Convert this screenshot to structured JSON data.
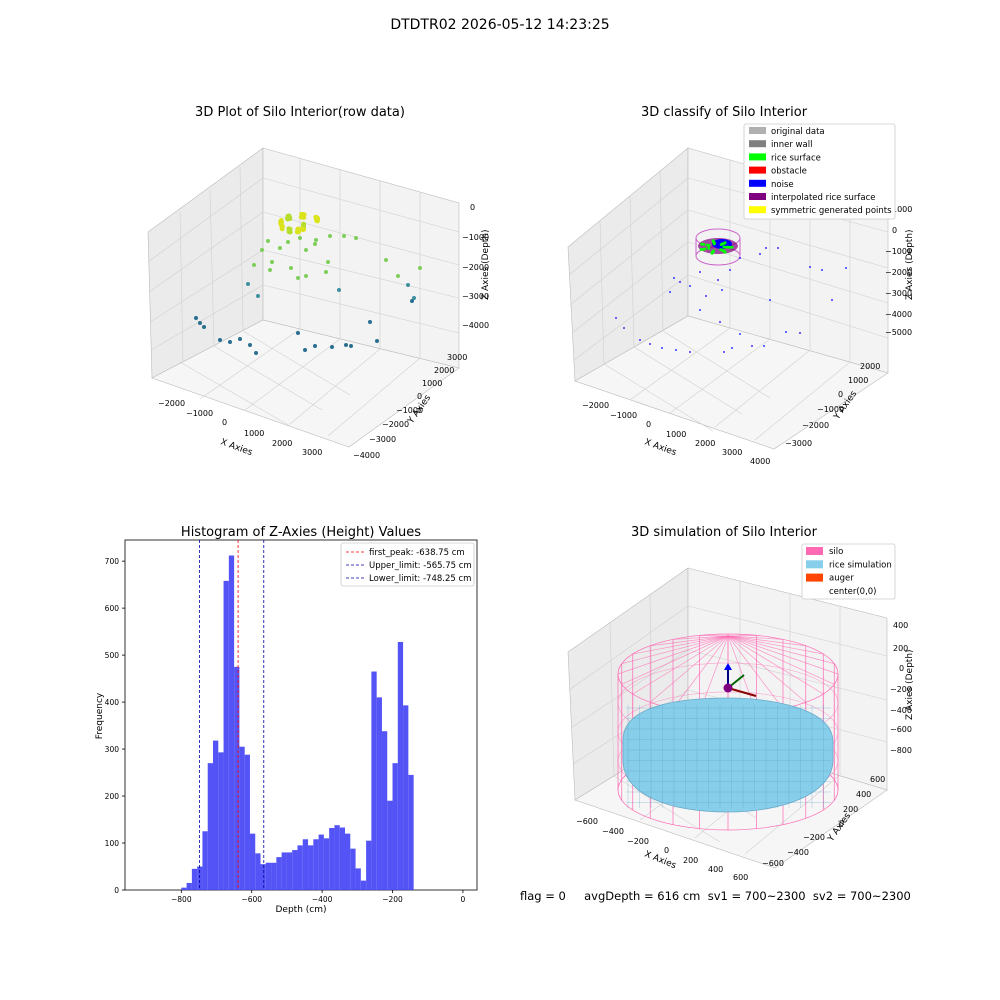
{
  "figure": {
    "suptitle": "DTDTR02 2026-05-12 14:23:25",
    "footer": "flag = 0     avgDepth = 616 cm  sv1 = 700~2300  sv2 = 700~2300"
  },
  "plots": {
    "raw": {
      "title": "3D Plot of Silo Interior(row data)",
      "xlabel": "X Axies",
      "ylabel": "Y Axies",
      "zlabel": "Z Axies (Depth)",
      "x_ticks": [
        "−2000",
        "−1000",
        "0",
        "1000",
        "2000",
        "3000"
      ],
      "y_ticks": [
        "−4000",
        "−3000",
        "−2000",
        "−1000",
        "0",
        "1000",
        "2000",
        "3000"
      ],
      "z_ticks": [
        "0",
        "−1000",
        "−2000",
        "−3000",
        "−4000"
      ]
    },
    "classify": {
      "title": "3D classify of Silo Interior",
      "xlabel": "X Axies",
      "ylabel": "Y Axies",
      "zlabel": "Z Axies (Depth)",
      "x_ticks": [
        "−2000",
        "−1000",
        "0",
        "1000",
        "2000",
        "3000",
        "4000"
      ],
      "y_ticks": [
        "−3000",
        "−2000",
        "−1000",
        "0",
        "1000",
        "2000"
      ],
      "z_ticks": [
        "1000",
        "0",
        "−1000",
        "−2000",
        "−3000",
        "−4000",
        "−5000"
      ],
      "legend": [
        {
          "label": "original data",
          "color": "#b0b0b0"
        },
        {
          "label": "inner wall",
          "color": "#808080"
        },
        {
          "label": "rice surface",
          "color": "#00ff00"
        },
        {
          "label": "obstacle",
          "color": "#ff0000"
        },
        {
          "label": "noise",
          "color": "#0000ff"
        },
        {
          "label": "interpolated rice surface",
          "color": "#800080"
        },
        {
          "label": "symmetric generated points",
          "color": "#ffff00"
        }
      ]
    },
    "simulation": {
      "title": "3D simulation of Silo Interior",
      "xlabel": "X Axies",
      "ylabel": "Y Axies",
      "zlabel": "Z Axies (Depth)",
      "x_ticks": [
        "−600",
        "−400",
        "−200",
        "0",
        "200",
        "400",
        "600"
      ],
      "y_ticks": [
        "−600",
        "−400",
        "−200",
        "0",
        "200",
        "400",
        "600"
      ],
      "z_ticks": [
        "400",
        "200",
        "0",
        "−200",
        "−400",
        "−600",
        "−800"
      ],
      "legend": [
        {
          "label": "silo",
          "color": "#ff69b4"
        },
        {
          "label": "rice simulation",
          "color": "#87ceeb"
        },
        {
          "label": "auger",
          "color": "#ff4500"
        },
        {
          "label": "center(0,0)",
          "color": ""
        }
      ]
    }
  },
  "chart_data": {
    "type": "bar",
    "title": "Histogram of Z-Axies (Height) Values",
    "xlabel": "Depth (cm)",
    "ylabel": "Frequency",
    "xlim": [
      -960,
      40
    ],
    "ylim": [
      0,
      745
    ],
    "x_ticks": [
      -800,
      -600,
      -400,
      -200,
      0
    ],
    "x_tick_labels": [
      "−800",
      "−600",
      "−400",
      "−200",
      "0"
    ],
    "y_ticks": [
      0,
      100,
      200,
      300,
      400,
      500,
      600,
      700
    ],
    "bin_start": -800,
    "bin_width": 15,
    "bar_color": "#4b4bf5",
    "counts": [
      5,
      15,
      45,
      50,
      125,
      270,
      318,
      293,
      658,
      712,
      475,
      305,
      288,
      120,
      78,
      55,
      58,
      58,
      70,
      80,
      80,
      85,
      95,
      108,
      95,
      108,
      118,
      110,
      132,
      138,
      133,
      120,
      88,
      46,
      20,
      105,
      465,
      410,
      338,
      190,
      270,
      528,
      393,
      245
    ],
    "vlines": [
      {
        "x": -638.75,
        "color": "#ff0000",
        "label": "first_peak: -638.75 cm"
      },
      {
        "x": -565.75,
        "color": "#0000aa",
        "label": "Upper_limit: -565.75 cm"
      },
      {
        "x": -748.25,
        "color": "#0000aa",
        "label": "Lower_limit: -748.25 cm"
      }
    ],
    "legend_position": "upper right"
  }
}
